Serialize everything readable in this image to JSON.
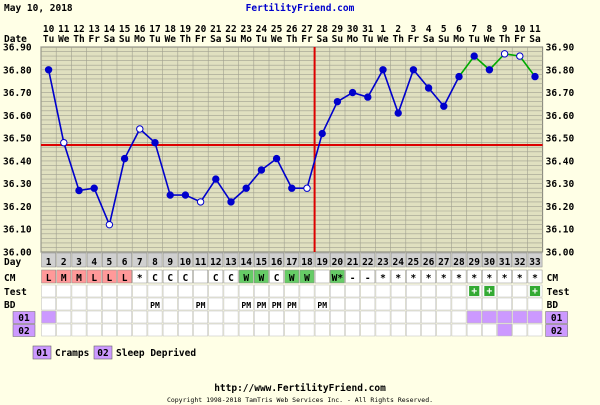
{
  "header": {
    "date": "May 10, 2018",
    "site": "FertilityFriend.com"
  },
  "row_labels": {
    "date": "Date",
    "day": "Day",
    "cm": "CM",
    "test": "Test",
    "bd": "BD",
    "custom1": "01",
    "custom2": "02"
  },
  "legend": [
    {
      "code": "01",
      "label": "Cramps"
    },
    {
      "code": "02",
      "label": "Sleep Deprived"
    }
  ],
  "footer": {
    "url": "http://www.FertilityFriend.com",
    "copyright": "Copyright 1998-2018 TamTris Web Services Inc. - All Rights Reserved."
  },
  "colors": {
    "background": "#ffffe6",
    "grid_bg": "#e0e0c0",
    "grid_line": "#a0a090",
    "temp_line": "#0000cc",
    "post_line": "#00aa00",
    "coverline": "#dd0000",
    "cm_menses": "#ff9999",
    "cm_watery": "#66cc66",
    "test_positive": "#33aa33",
    "custom": "#cc99ff"
  },
  "chart_data": {
    "type": "line",
    "title": "",
    "ylim": [
      36.0,
      36.9
    ],
    "yticks": [
      "36.90",
      "36.80",
      "36.70",
      "36.60",
      "36.50",
      "36.40",
      "36.30",
      "36.20",
      "36.10",
      "36.00"
    ],
    "dates": [
      "10",
      "11",
      "12",
      "13",
      "14",
      "15",
      "16",
      "17",
      "18",
      "19",
      "20",
      "21",
      "22",
      "23",
      "24",
      "25",
      "26",
      "27",
      "28",
      "29",
      "30",
      "31",
      "1",
      "2",
      "3",
      "4",
      "5",
      "6",
      "7",
      "8",
      "9",
      "10",
      "11"
    ],
    "weekdays": [
      "Tu",
      "We",
      "Th",
      "Fr",
      "Sa",
      "Su",
      "Mo",
      "Tu",
      "We",
      "Th",
      "Fr",
      "Sa",
      "Su",
      "Mo",
      "Tu",
      "We",
      "Th",
      "Fr",
      "Sa",
      "Su",
      "Mo",
      "Tu",
      "We",
      "Th",
      "Fr",
      "Sa",
      "Su",
      "Mo",
      "Tu",
      "We",
      "Th",
      "Fr",
      "Sa"
    ],
    "header_weekdays": [
      "Tu",
      "We",
      "Th",
      "Fr",
      "Sa",
      "Su",
      "Mo",
      "Tu",
      "We",
      "Th",
      "Fr",
      "Sa",
      "Su",
      "Mo",
      "Tu",
      "We",
      "Th",
      "Fr",
      "Sa",
      "Su",
      "Mo",
      "Tu",
      "We",
      "Th",
      "Fr",
      "Sa",
      "Su",
      "Mo",
      "Tu",
      "We",
      "Th",
      "Fr",
      "Sa"
    ],
    "days": [
      1,
      2,
      3,
      4,
      5,
      6,
      7,
      8,
      9,
      10,
      11,
      12,
      13,
      14,
      15,
      16,
      17,
      18,
      19,
      20,
      21,
      22,
      23,
      24,
      25,
      26,
      27,
      28,
      29,
      30,
      31,
      32,
      33
    ],
    "temps": [
      36.8,
      36.48,
      36.27,
      36.28,
      36.12,
      36.41,
      36.54,
      36.48,
      36.25,
      36.25,
      36.22,
      36.32,
      36.22,
      36.28,
      36.36,
      36.41,
      36.28,
      36.28,
      36.52,
      36.66,
      36.7,
      36.68,
      36.8,
      36.61,
      36.8,
      36.72,
      36.64,
      36.77,
      36.86,
      36.8,
      36.87,
      36.86,
      36.77
    ],
    "open_points": [
      2,
      5,
      7,
      11,
      18,
      31,
      32
    ],
    "green_from_day": 28,
    "coverline": 36.47,
    "ovulation_line_after_day": 18,
    "cm": [
      "L",
      "M",
      "M",
      "L",
      "L",
      "L",
      "*",
      "C",
      "C",
      "C",
      "",
      "C",
      "C",
      "W",
      "W",
      "C",
      "W",
      "W",
      "",
      "W*",
      "-",
      "-",
      "*",
      "*",
      "*",
      "*",
      "*",
      "*",
      "*",
      "*",
      "*",
      "*",
      "*"
    ],
    "test": [
      "",
      "",
      "",
      "",
      "",
      "",
      "",
      "",
      "",
      "",
      "",
      "",
      "",
      "",
      "",
      "",
      "",
      "",
      "",
      "",
      "",
      "",
      "",
      "",
      "",
      "",
      "",
      "",
      "+",
      "+",
      "",
      "",
      "+"
    ],
    "bd": [
      "",
      "",
      "",
      "",
      "",
      "",
      "",
      "PM",
      "",
      "",
      "PM",
      "",
      "",
      "PM",
      "PM",
      "PM",
      "PM",
      "",
      "PM",
      "",
      "",
      "",
      "",
      "",
      "",
      "",
      "",
      "",
      "",
      "",
      "",
      "",
      ""
    ],
    "custom1": [
      1,
      0,
      0,
      0,
      0,
      0,
      0,
      0,
      0,
      0,
      0,
      0,
      0,
      0,
      0,
      0,
      0,
      0,
      0,
      0,
      0,
      0,
      0,
      0,
      0,
      0,
      0,
      0,
      1,
      1,
      1,
      1,
      1
    ],
    "custom2": [
      0,
      0,
      0,
      0,
      0,
      0,
      0,
      0,
      0,
      0,
      0,
      0,
      0,
      0,
      0,
      0,
      0,
      0,
      0,
      0,
      0,
      0,
      0,
      0,
      0,
      0,
      0,
      0,
      0,
      0,
      1,
      0,
      0
    ]
  }
}
